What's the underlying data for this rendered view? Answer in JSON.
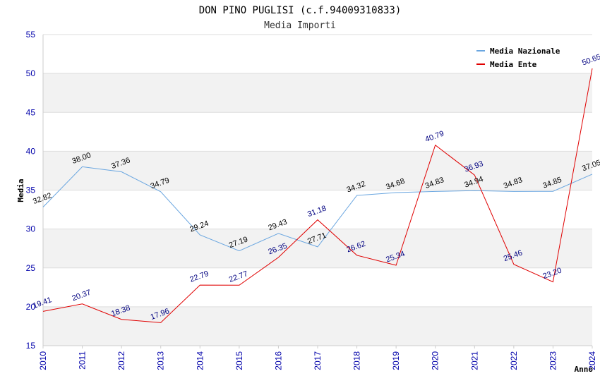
{
  "chart_data": {
    "type": "line",
    "title": "DON PINO PUGLISI (c.f.94009310833)",
    "subtitle": "Media Importi",
    "xlabel": "Anno",
    "ylabel": "Media",
    "ylim": [
      15,
      55
    ],
    "yticks": [
      15,
      20,
      25,
      30,
      35,
      40,
      45,
      50,
      55
    ],
    "grid": true,
    "legend_position": "top-right",
    "x": [
      "2010",
      "2011",
      "2012",
      "2013",
      "2014",
      "2015",
      "2016",
      "2017",
      "2018",
      "2019",
      "2020",
      "2021",
      "2022",
      "2023",
      "2024"
    ],
    "series": [
      {
        "name": "Media Nazionale",
        "color": "#6aa6e0",
        "label_color": "#000000",
        "values": [
          32.82,
          38.0,
          37.36,
          34.79,
          29.24,
          27.19,
          29.43,
          27.71,
          34.32,
          34.68,
          34.83,
          34.94,
          34.83,
          34.85,
          37.05
        ],
        "labels": [
          "32.82",
          "38.00",
          "37.36",
          "34.79",
          "29.24",
          "27.19",
          "29.43",
          "27.71",
          "34.32",
          "34.68",
          "34.83",
          "34.94",
          "34.83",
          "34.85",
          "37.05"
        ]
      },
      {
        "name": "Media Ente",
        "color": "#e00000",
        "label_color": "#000080",
        "values": [
          19.41,
          20.37,
          18.38,
          17.96,
          22.79,
          22.77,
          26.35,
          31.18,
          26.62,
          25.34,
          40.79,
          36.93,
          25.46,
          23.2,
          50.65
        ],
        "labels": [
          "19.41",
          "20.37",
          "18.38",
          "17.96",
          "22.79",
          "22.77",
          "26.35",
          "31.18",
          "26.62",
          "25.34",
          "40.79",
          "36.93",
          "25.46",
          "23.20",
          "50.65"
        ]
      }
    ]
  }
}
